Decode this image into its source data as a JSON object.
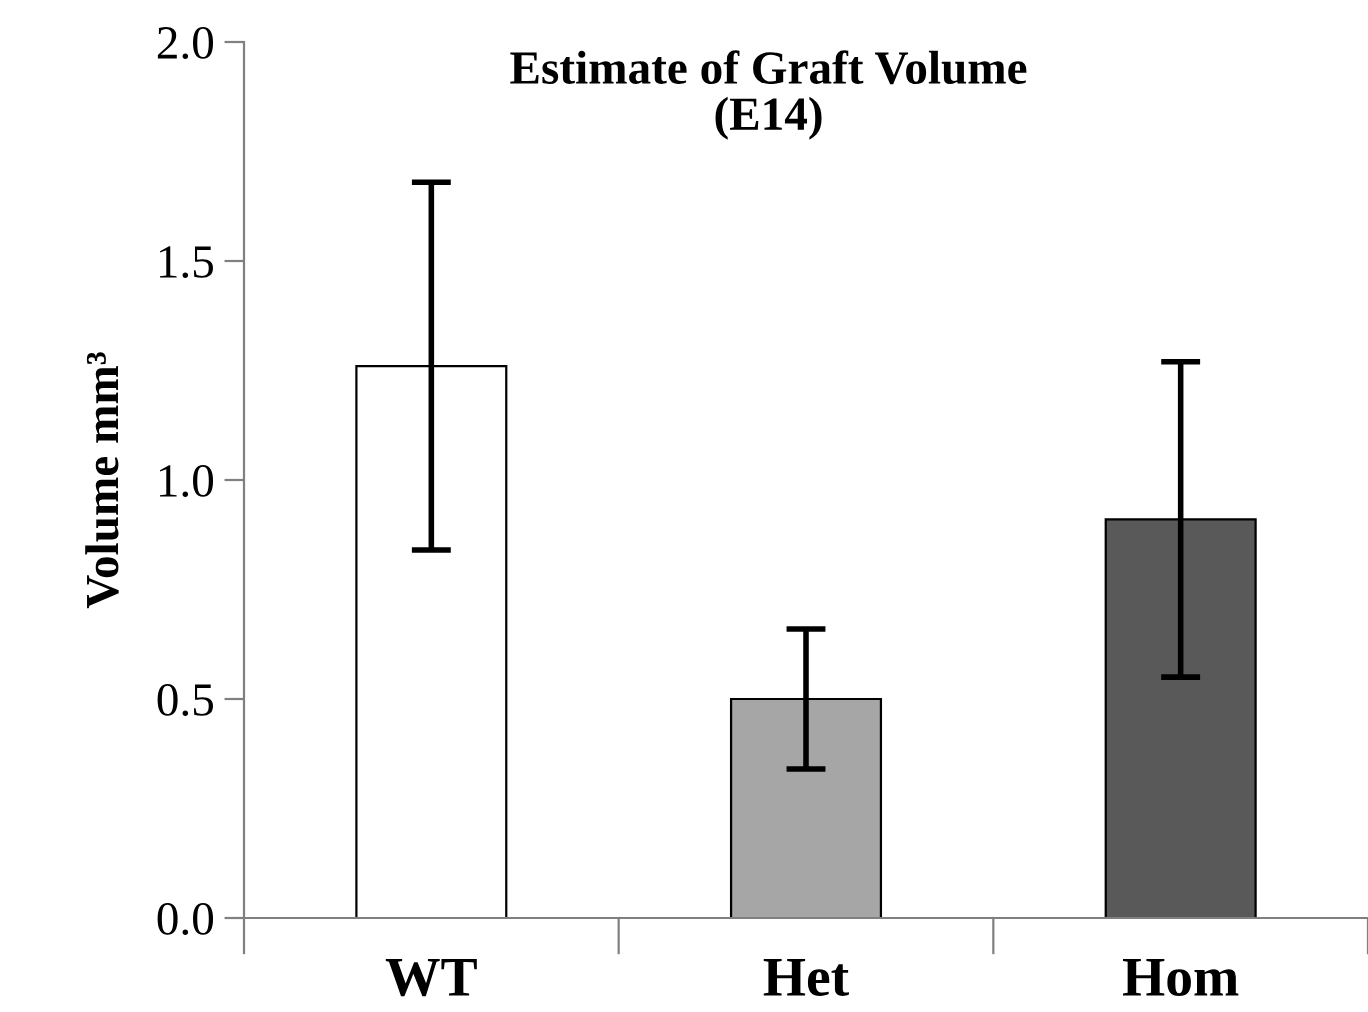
{
  "chart_data": {
    "type": "bar",
    "title": "Estimate of Graft Volume\n(E14)",
    "ylabel": "Volume mm³",
    "categories": [
      "WT",
      "Het",
      "Hom"
    ],
    "values": [
      1.26,
      0.5,
      0.91
    ],
    "errors": [
      0.42,
      0.16,
      0.36
    ],
    "colors": [
      "#ffffff",
      "#a6a6a6",
      "#595959"
    ],
    "ylim": [
      0,
      2.0
    ],
    "yticks": [
      {
        "value": 0,
        "label": "0.0"
      },
      {
        "value": 0.5,
        "label": "0.5"
      },
      {
        "value": 1.0,
        "label": "1.0"
      },
      {
        "value": 1.5,
        "label": "1.5"
      },
      {
        "value": 2.0,
        "label": "2.0"
      }
    ],
    "grid": false,
    "legend": false
  }
}
